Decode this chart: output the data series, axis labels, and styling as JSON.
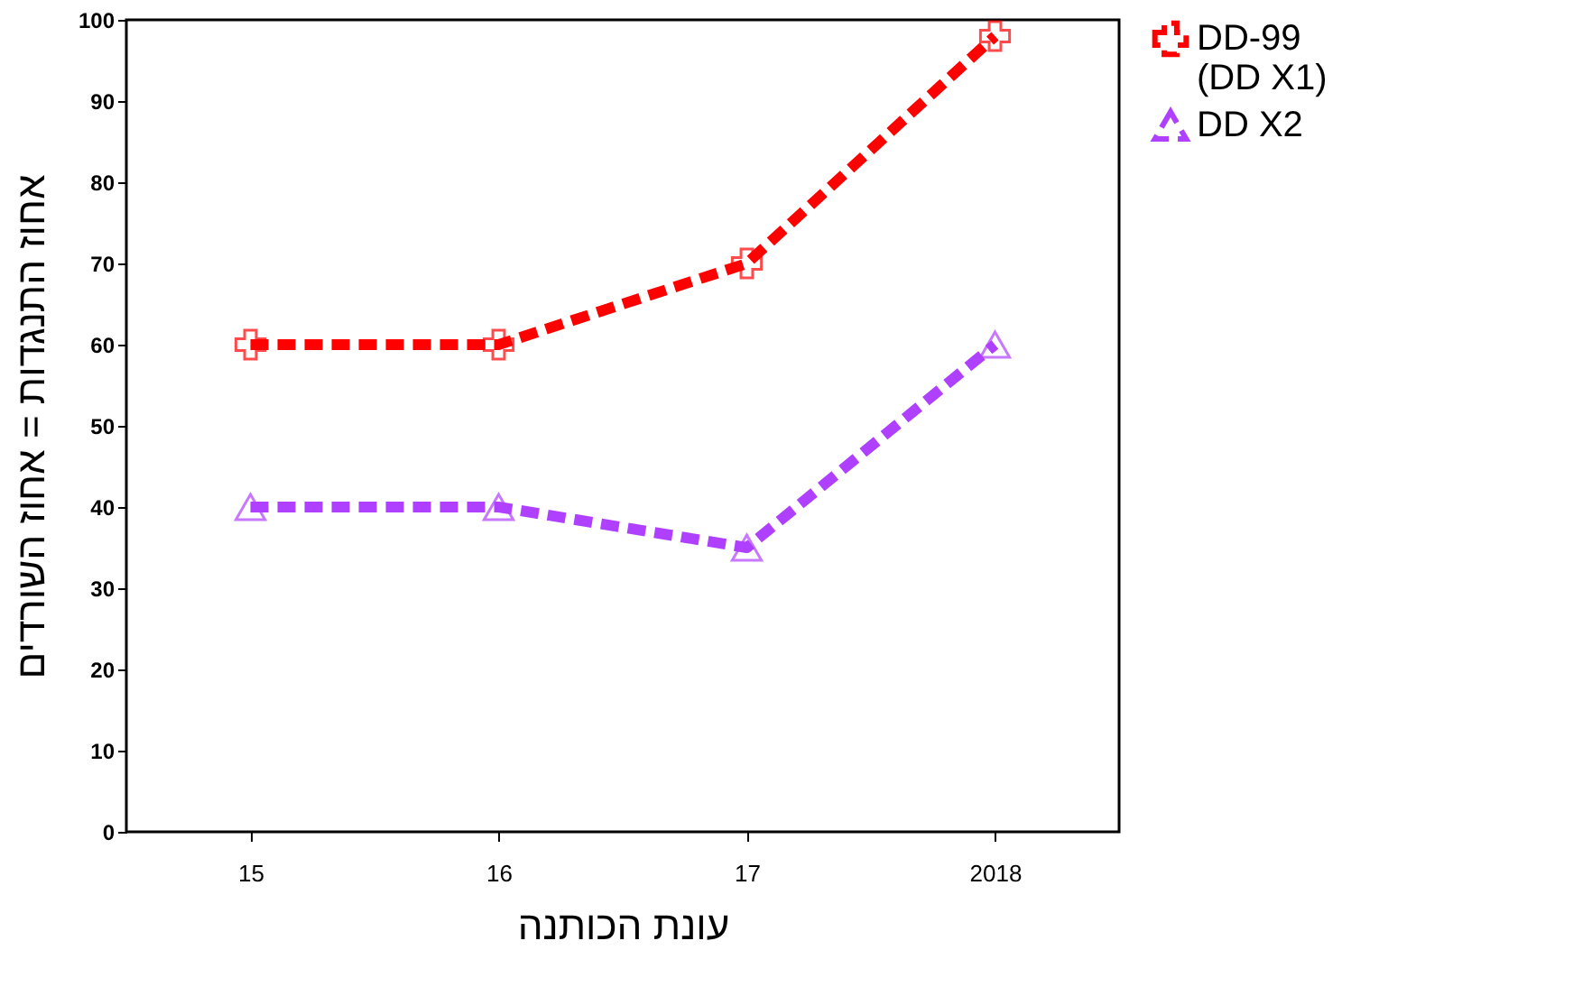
{
  "chart_data": {
    "type": "line",
    "xlabel": "עונת הכותנה",
    "ylabel": "אחוז התנגדות = אחוז השורדים",
    "categories": [
      "15",
      "16",
      "17",
      "2018"
    ],
    "series": [
      {
        "name": "DD-99\n(DD X1)",
        "color": "#ff0000",
        "values": [
          60,
          60,
          70,
          98
        ],
        "marker": "cross",
        "line_style": "dashed"
      },
      {
        "name": "DD X2",
        "color": "#b040ff",
        "values": [
          40,
          40,
          35,
          60
        ],
        "marker": "triangle",
        "line_style": "dashed"
      }
    ],
    "ylim": [
      0,
      100
    ],
    "yticks": [
      0,
      10,
      20,
      30,
      40,
      50,
      60,
      70,
      80,
      90,
      100
    ],
    "grid": false,
    "legend": "right"
  }
}
